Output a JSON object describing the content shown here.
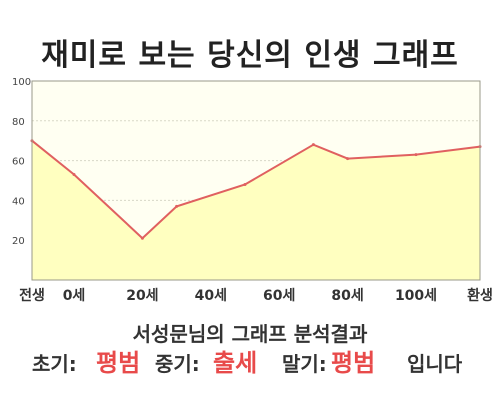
{
  "title": "재미로 보는 당신의 인생 그래프",
  "chart_data": {
    "type": "area",
    "title": "재미로 보는 당신의 인생 그래프",
    "x_categories": [
      "전생",
      "0세",
      "20세",
      "40세",
      "60세",
      "80세",
      "100세",
      "환생"
    ],
    "y_ticks": [
      20,
      40,
      60,
      80,
      100
    ],
    "ylim": [
      0,
      100
    ],
    "grid": true,
    "colors": {
      "line": "#e06060",
      "fill": "#ffffc0",
      "plot_bg": "#fffff2",
      "grid": "#d8d8c8"
    },
    "points": [
      {
        "x": "전생",
        "y": 70
      },
      {
        "x": "0세",
        "y": 53
      },
      {
        "x": "20세",
        "y": 21
      },
      {
        "x": "30세",
        "y": 37
      },
      {
        "x": "50세",
        "y": 48
      },
      {
        "x": "70세",
        "y": 68
      },
      {
        "x": "80세",
        "y": 61
      },
      {
        "x": "100세",
        "y": 63
      },
      {
        "x": "환생",
        "y": 67
      }
    ]
  },
  "summary": {
    "heading": "서성문님의 그래프 분석결과",
    "early_label": "초기:",
    "early_value": "평범",
    "middle_label": "중기:",
    "middle_value": "출세",
    "late_label": "말기:",
    "late_value": "평범",
    "suffix": "입니다"
  }
}
